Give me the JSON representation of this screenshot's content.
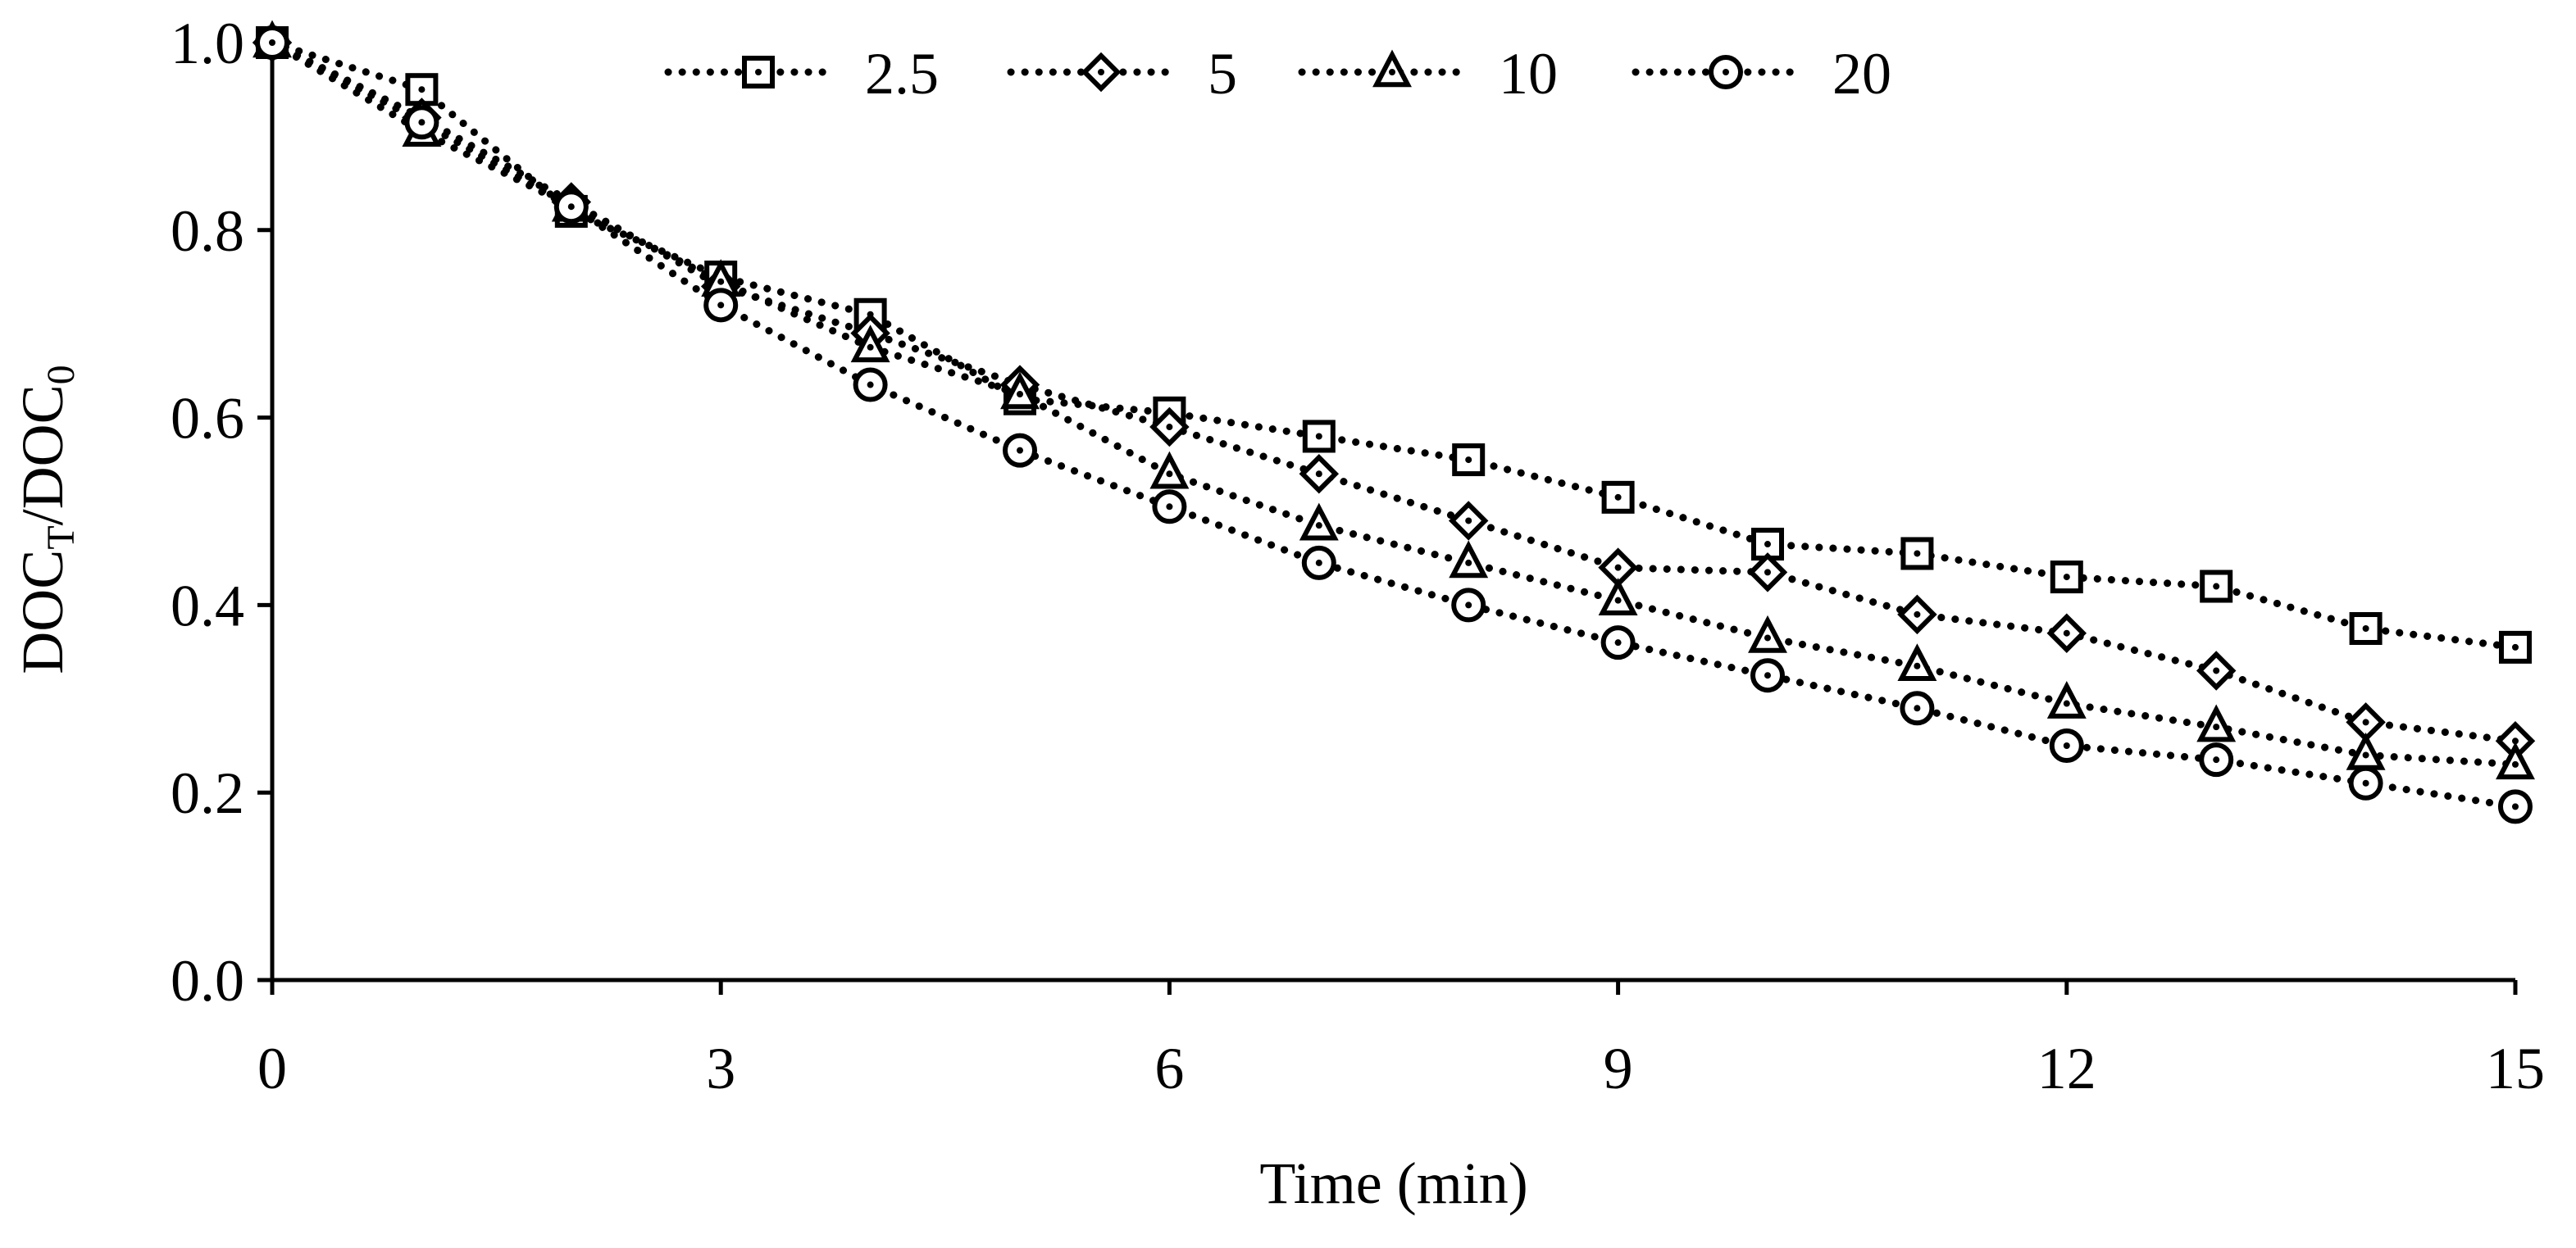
{
  "chart_data": {
    "type": "line",
    "title": "",
    "xlabel": "Time (min)",
    "ylabel": {
      "main": "DOC",
      "sub1": "T",
      "slash": "/DOC",
      "sub2": "0"
    },
    "xlim": [
      0,
      15
    ],
    "ylim": [
      0,
      1.0
    ],
    "x_ticks": [
      0,
      3,
      6,
      9,
      12,
      15
    ],
    "x_tick_labels": [
      "0",
      "3",
      "6",
      "9",
      "12",
      "15"
    ],
    "y_ticks": [
      0,
      0.2,
      0.4,
      0.6,
      0.8,
      1.0
    ],
    "y_tick_labels": [
      "0.0",
      "0.2",
      "0.4",
      "0.6",
      "0.8",
      "1.0"
    ],
    "grid": false,
    "legend_position": "top-center",
    "x": [
      0,
      1,
      2,
      3,
      4,
      5,
      6,
      7,
      8,
      9,
      10,
      11,
      12,
      13,
      14,
      15
    ],
    "series": [
      {
        "name": "2.5",
        "marker": "square",
        "values": [
          1.0,
          0.95,
          0.82,
          0.75,
          0.71,
          0.62,
          0.605,
          0.58,
          0.555,
          0.515,
          0.465,
          0.455,
          0.43,
          0.42,
          0.375,
          0.355
        ]
      },
      {
        "name": "5",
        "marker": "diamond",
        "values": [
          1.0,
          0.92,
          0.83,
          0.74,
          0.69,
          0.635,
          0.59,
          0.54,
          0.49,
          0.44,
          0.435,
          0.39,
          0.37,
          0.33,
          0.275,
          0.255
        ]
      },
      {
        "name": "10",
        "marker": "triangle",
        "values": [
          1.0,
          0.905,
          0.825,
          0.745,
          0.675,
          0.625,
          0.54,
          0.485,
          0.445,
          0.405,
          0.365,
          0.335,
          0.295,
          0.27,
          0.24,
          0.23
        ]
      },
      {
        "name": "20",
        "marker": "circle",
        "values": [
          1.0,
          0.915,
          0.825,
          0.72,
          0.635,
          0.565,
          0.505,
          0.445,
          0.4,
          0.36,
          0.325,
          0.29,
          0.25,
          0.235,
          0.21,
          0.185
        ]
      }
    ]
  }
}
